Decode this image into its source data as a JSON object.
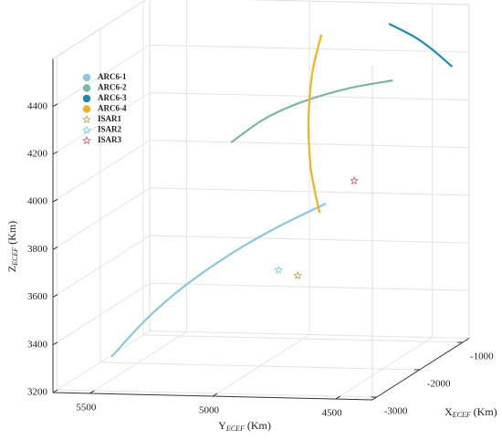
{
  "chart_data": {
    "type": "line3d",
    "xlabel": [
      "X",
      "ECEF",
      " (Km)"
    ],
    "ylabel": [
      "Y",
      "ECEF",
      " (Km)"
    ],
    "zlabel": [
      "Z",
      "ECEF",
      " (Km)"
    ],
    "xlim": [
      -3100,
      -850
    ],
    "ylim": [
      4350,
      5650
    ],
    "zlim": [
      3200,
      4600
    ],
    "xticks": [
      -3000,
      -2000,
      -1000
    ],
    "yticks": [
      4500,
      5000,
      5500
    ],
    "zticks": [
      3200,
      3400,
      3600,
      3800,
      4000,
      4200,
      4400
    ],
    "grid": true,
    "legend": "upper left",
    "series": [
      {
        "name": "ARC6-1",
        "color": "#8cc6df",
        "marker": "circle",
        "x": [
          -2500,
          -2500,
          -2500,
          -2500,
          -2500,
          -2500
        ],
        "y": [
          5517,
          5376,
          5227,
          5042,
          4856,
          4644
        ],
        "z": [
          3284,
          3444,
          3582,
          3720,
          3836,
          3948
        ]
      },
      {
        "name": "ARC6-2",
        "color": "#7db79d",
        "marker": "circle",
        "x": [
          -1500,
          -1500,
          -1500,
          -1500,
          -1500
        ],
        "y": [
          5205,
          5068,
          4919,
          4733,
          4547
        ],
        "z": [
          4076,
          4179,
          4252,
          4313,
          4352
        ]
      },
      {
        "name": "ARC6-3",
        "color": "#1a8db0",
        "marker": "circle",
        "x": [
          -1000,
          -1000,
          -1000,
          -1000
        ],
        "y": [
          4650,
          4549,
          4475,
          4393
        ],
        "z": [
          4530,
          4479,
          4427,
          4356
        ]
      },
      {
        "name": "ARC6-4",
        "color": "#f0b41a",
        "marker": "circle",
        "x": [
          -2000,
          -2000,
          -2000,
          -2000,
          -2000,
          -2000
        ],
        "y": [
          4750,
          4787,
          4802,
          4795,
          4776,
          4757
        ],
        "z": [
          4597,
          4435,
          4243,
          4052,
          3937,
          3849
        ]
      },
      {
        "name": "ISAR1",
        "color": "#b8a24a",
        "marker": "star",
        "x": [
          -2500
        ],
        "y": [
          4759
        ],
        "z": [
          3643
        ]
      },
      {
        "name": "ISAR2",
        "color": "#6ccfe6",
        "marker": "star",
        "x": [
          -2500
        ],
        "y": [
          4837
        ],
        "z": [
          3664
        ]
      },
      {
        "name": "ISAR3",
        "color": "#d0506a",
        "marker": "star",
        "x": [
          -2500
        ],
        "y": [
          4529
        ],
        "z": [
          4046
        ]
      }
    ]
  }
}
